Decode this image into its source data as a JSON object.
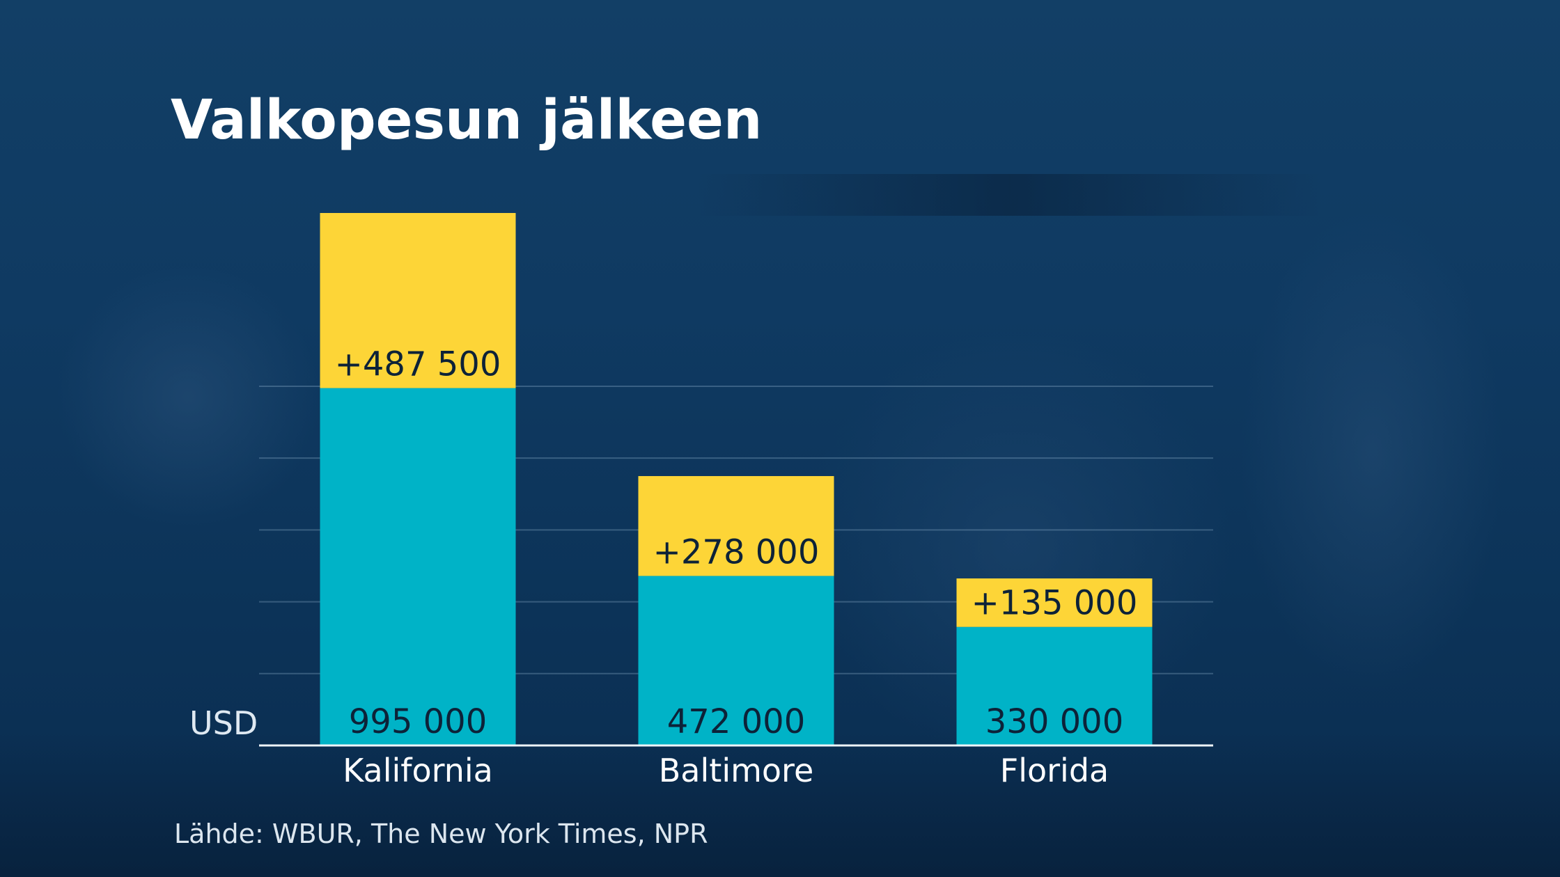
{
  "chart_data": {
    "type": "bar",
    "stacked": true,
    "title": "Valkopesun jälkeen",
    "unit_label": "USD",
    "categories": [
      "Kalifornia",
      "Baltimore",
      "Florida"
    ],
    "series": [
      {
        "values": [
          995000,
          472000,
          330000
        ],
        "labels": [
          "995 000",
          "472 000",
          "330 000"
        ],
        "color": "#00b3c7"
      },
      {
        "values": [
          487500,
          278000,
          135000
        ],
        "labels": [
          "+487 500",
          "+278 000",
          "+135 000"
        ],
        "color": "#fdd537"
      }
    ],
    "ylim": [
      0,
      1500000
    ],
    "grid": true,
    "source": "Lähde: WBUR, The New York Times, NPR"
  },
  "colors": {
    "base": "#00b3c7",
    "increase": "#fdd537",
    "text_light": "#ffffff"
  }
}
